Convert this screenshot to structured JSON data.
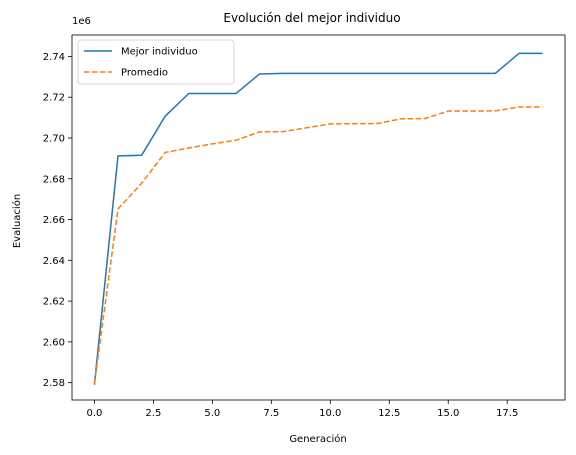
{
  "chart_data": {
    "type": "line",
    "title": "Evolución del mejor individuo",
    "xlabel": "Generación",
    "ylabel": "Evaluación",
    "y_offset_label": "1e6",
    "xlim": [
      -0.95,
      19.95
    ],
    "ylim": [
      2571500,
      2750500
    ],
    "xticks": [
      0,
      2.5,
      5,
      7.5,
      10,
      12.5,
      15,
      17.5
    ],
    "xtick_labels": [
      "0.0",
      "2.5",
      "5.0",
      "7.5",
      "10.0",
      "12.5",
      "15.0",
      "17.5"
    ],
    "yticks": [
      2580000,
      2600000,
      2620000,
      2640000,
      2660000,
      2680000,
      2700000,
      2720000,
      2740000
    ],
    "ytick_labels": [
      "2.58",
      "2.60",
      "2.62",
      "2.64",
      "2.66",
      "2.68",
      "2.70",
      "2.72",
      "2.74"
    ],
    "grid": false,
    "legend_position": "upper-left",
    "x": [
      0,
      1,
      2,
      3,
      4,
      5,
      6,
      7,
      8,
      9,
      10,
      11,
      12,
      13,
      14,
      15,
      16,
      17,
      18,
      19
    ],
    "series": [
      {
        "name": "Mejor individuo",
        "color": "#1f77b4",
        "style": "solid",
        "values": [
          2579000,
          2691200,
          2691500,
          2710700,
          2721800,
          2721800,
          2721800,
          2731400,
          2731700,
          2731700,
          2731700,
          2731700,
          2731700,
          2731700,
          2731700,
          2731700,
          2731700,
          2731700,
          2741500,
          2741500
        ]
      },
      {
        "name": "Promedio",
        "color": "#ff7f0e",
        "style": "dashed",
        "values": [
          2579500,
          2665200,
          2677800,
          2692900,
          2695100,
          2697100,
          2698900,
          2703000,
          2703100,
          2705000,
          2706900,
          2707000,
          2707100,
          2709400,
          2709500,
          2713200,
          2713200,
          2713300,
          2715200,
          2715200
        ]
      }
    ]
  }
}
